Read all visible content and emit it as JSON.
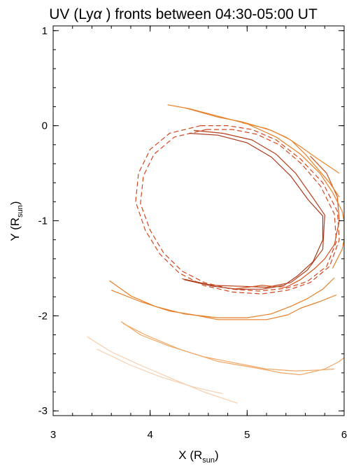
{
  "chart_data": {
    "type": "line",
    "title_parts": [
      "UV (Ly",
      "α",
      " ) fronts between 04:30-05:00 UT"
    ],
    "xlabel": "X (R",
    "xlabel_sub": "sun",
    "xlabel_close": ")",
    "ylabel": "Y (R",
    "ylabel_sub": "sun",
    "ylabel_close": ")",
    "xlim": [
      3,
      6
    ],
    "ylim": [
      -3.05,
      1.05
    ],
    "xticks": [
      3,
      4,
      5,
      6
    ],
    "xtick_labels": [
      "3",
      "4",
      "5",
      "6"
    ],
    "yticks": [
      -3,
      -2,
      -1,
      0,
      1
    ],
    "ytick_labels": [
      "-3",
      "-2",
      "-1",
      "0",
      "1"
    ],
    "grid": false,
    "series": [
      {
        "color": "#d2461e",
        "dash": true,
        "points": [
          [
            4.52,
            0.0
          ],
          [
            4.8,
            0.0
          ],
          [
            5.05,
            -0.04
          ],
          [
            5.3,
            -0.15
          ],
          [
            5.55,
            -0.35
          ],
          [
            5.78,
            -0.6
          ],
          [
            5.93,
            -0.9
          ],
          [
            5.95,
            -1.2
          ],
          [
            5.85,
            -1.48
          ],
          [
            5.65,
            -1.65
          ],
          [
            5.42,
            -1.73
          ],
          [
            5.15,
            -1.77
          ],
          [
            4.85,
            -1.75
          ],
          [
            4.55,
            -1.68
          ],
          [
            4.3,
            -1.55
          ],
          [
            4.1,
            -1.35
          ],
          [
            3.95,
            -1.1
          ],
          [
            3.85,
            -0.8
          ],
          [
            3.88,
            -0.5
          ],
          [
            4.0,
            -0.25
          ],
          [
            4.2,
            -0.08
          ],
          [
            4.52,
            0.0
          ]
        ]
      },
      {
        "color": "#d2461e",
        "dash": true,
        "points": [
          [
            4.58,
            -0.04
          ],
          [
            4.85,
            -0.04
          ],
          [
            5.1,
            -0.09
          ],
          [
            5.33,
            -0.2
          ],
          [
            5.56,
            -0.4
          ],
          [
            5.76,
            -0.64
          ],
          [
            5.9,
            -0.93
          ],
          [
            5.92,
            -1.22
          ],
          [
            5.82,
            -1.48
          ],
          [
            5.62,
            -1.64
          ],
          [
            5.4,
            -1.71
          ],
          [
            5.12,
            -1.74
          ],
          [
            4.84,
            -1.72
          ],
          [
            4.56,
            -1.65
          ],
          [
            4.33,
            -1.53
          ],
          [
            4.14,
            -1.34
          ],
          [
            4.0,
            -1.1
          ],
          [
            3.9,
            -0.82
          ],
          [
            3.93,
            -0.53
          ],
          [
            4.04,
            -0.3
          ],
          [
            4.25,
            -0.12
          ],
          [
            4.58,
            -0.04
          ]
        ]
      },
      {
        "color": "#a8381a",
        "dash": false,
        "points": [
          [
            4.4,
            -0.08
          ],
          [
            4.7,
            -0.1
          ],
          [
            5.0,
            -0.18
          ],
          [
            5.25,
            -0.33
          ],
          [
            5.45,
            -0.53
          ],
          [
            5.63,
            -0.78
          ],
          [
            5.78,
            -0.95
          ],
          [
            5.78,
            -1.2
          ],
          [
            5.68,
            -1.43
          ],
          [
            5.52,
            -1.58
          ],
          [
            5.38,
            -1.68
          ],
          [
            5.15,
            -1.72
          ],
          [
            4.9,
            -1.72
          ],
          [
            4.65,
            -1.69
          ],
          [
            4.35,
            -1.62
          ]
        ]
      },
      {
        "color": "#b73e1a",
        "dash": false,
        "points": [
          [
            4.45,
            -0.05
          ],
          [
            4.75,
            -0.08
          ],
          [
            5.05,
            -0.15
          ],
          [
            5.3,
            -0.3
          ],
          [
            5.5,
            -0.5
          ],
          [
            5.68,
            -0.76
          ],
          [
            5.8,
            -0.94
          ],
          [
            5.78,
            -1.3
          ],
          [
            5.62,
            -1.52
          ],
          [
            5.45,
            -1.65
          ],
          [
            5.2,
            -1.7
          ],
          [
            4.95,
            -1.69
          ],
          [
            4.65,
            -1.68
          ],
          [
            4.33,
            -1.61
          ]
        ]
      },
      {
        "color": "#d2531c",
        "dash": false,
        "points": [
          [
            4.85,
            -1.72
          ],
          [
            5.15,
            -1.68
          ],
          [
            5.4,
            -1.7
          ],
          [
            5.55,
            -1.62
          ],
          [
            5.7,
            -1.5
          ],
          [
            5.8,
            -1.4
          ],
          [
            5.9,
            -1.25
          ],
          [
            5.95,
            -1.0
          ],
          [
            5.93,
            -0.75
          ],
          [
            5.82,
            -0.5
          ],
          [
            5.65,
            -0.32
          ]
        ]
      },
      {
        "color": "#e77f26",
        "dash": false,
        "points": [
          [
            4.18,
            0.22
          ],
          [
            4.4,
            0.18
          ],
          [
            4.7,
            0.1
          ],
          [
            5.0,
            0.02
          ],
          [
            5.3,
            -0.12
          ],
          [
            5.55,
            -0.3
          ],
          [
            5.75,
            -0.5
          ],
          [
            5.88,
            -0.7
          ],
          [
            5.98,
            -0.9
          ],
          [
            6.02,
            -1.1
          ],
          [
            5.98,
            -1.3
          ],
          [
            5.88,
            -1.5
          ]
        ]
      },
      {
        "color": "#e77f26",
        "dash": false,
        "points": [
          [
            4.35,
            0.19
          ],
          [
            4.7,
            0.09
          ],
          [
            4.95,
            0.04
          ],
          [
            5.25,
            -0.05
          ],
          [
            5.45,
            -0.15
          ],
          [
            5.6,
            -0.3
          ],
          [
            5.75,
            -0.48
          ],
          [
            5.85,
            -0.6
          ],
          [
            5.95,
            -0.75
          ]
        ]
      },
      {
        "color": "#e9862b",
        "dash": false,
        "points": [
          [
            4.95,
            0.03
          ],
          [
            5.2,
            -0.03
          ],
          [
            5.4,
            -0.12
          ],
          [
            5.55,
            -0.22
          ],
          [
            5.73,
            -0.35
          ],
          [
            5.95,
            -0.5
          ]
        ]
      },
      {
        "color": "#e77f26",
        "dash": false,
        "points": [
          [
            3.6,
            -1.73
          ],
          [
            3.9,
            -1.85
          ],
          [
            4.2,
            -1.95
          ],
          [
            4.45,
            -1.99
          ],
          [
            4.7,
            -2.04
          ],
          [
            4.95,
            -2.04
          ],
          [
            5.2,
            -2.04
          ],
          [
            5.42,
            -1.99
          ],
          [
            5.55,
            -1.92
          ],
          [
            5.75,
            -1.85
          ],
          [
            5.92,
            -1.78
          ]
        ]
      },
      {
        "color": "#e77f26",
        "dash": false,
        "points": [
          [
            3.58,
            -1.63
          ],
          [
            3.8,
            -1.79
          ],
          [
            4.05,
            -1.9
          ],
          [
            4.35,
            -1.98
          ],
          [
            4.7,
            -2.02
          ],
          [
            5.0,
            -2.02
          ],
          [
            5.25,
            -1.98
          ],
          [
            5.45,
            -1.9
          ],
          [
            5.62,
            -1.82
          ],
          [
            5.78,
            -1.72
          ],
          [
            5.9,
            -1.6
          ]
        ]
      },
      {
        "color": "#f0a664",
        "dash": false,
        "points": [
          [
            3.72,
            -2.08
          ],
          [
            3.95,
            -2.2
          ],
          [
            4.3,
            -2.35
          ],
          [
            4.7,
            -2.48
          ],
          [
            5.1,
            -2.55
          ],
          [
            5.35,
            -2.6
          ],
          [
            5.55,
            -2.62
          ],
          [
            5.8,
            -2.56
          ],
          [
            5.95,
            -2.48
          ],
          [
            6.05,
            -2.4
          ]
        ]
      },
      {
        "color": "#f0a664",
        "dash": false,
        "points": [
          [
            3.7,
            -2.06
          ],
          [
            3.9,
            -2.2
          ],
          [
            4.2,
            -2.32
          ],
          [
            4.55,
            -2.43
          ],
          [
            4.9,
            -2.5
          ],
          [
            5.2,
            -2.56
          ],
          [
            5.5,
            -2.58
          ],
          [
            5.75,
            -2.57
          ],
          [
            5.9,
            -2.56
          ]
        ]
      },
      {
        "color": "#f8cfae",
        "dash": false,
        "points": [
          [
            3.35,
            -2.22
          ],
          [
            3.6,
            -2.38
          ],
          [
            3.9,
            -2.52
          ],
          [
            4.2,
            -2.65
          ],
          [
            4.55,
            -2.8
          ],
          [
            4.9,
            -2.92
          ]
        ]
      },
      {
        "color": "#f8cfae",
        "dash": false,
        "points": [
          [
            3.45,
            -2.35
          ],
          [
            3.8,
            -2.52
          ],
          [
            4.1,
            -2.64
          ],
          [
            4.45,
            -2.75
          ],
          [
            4.75,
            -2.82
          ]
        ]
      }
    ]
  }
}
